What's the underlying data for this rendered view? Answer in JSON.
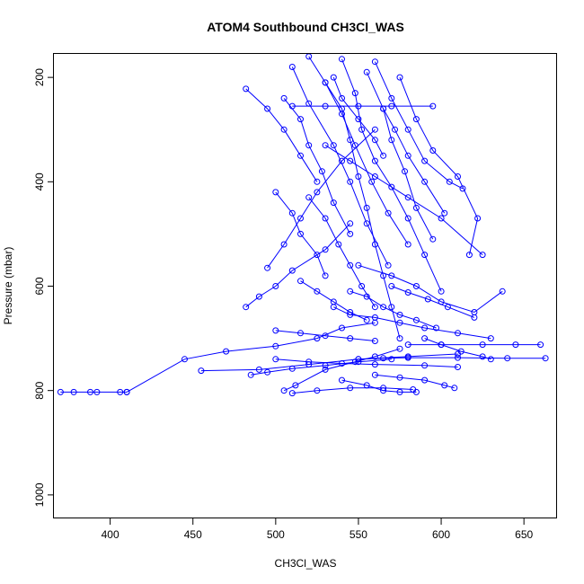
{
  "chart_data": {
    "type": "line",
    "title": "ATOM4 Southbound CH3Cl_WAS",
    "xlabel": "CH3Cl_WAS",
    "ylabel": "Pressure (mbar)",
    "xlim": [
      366,
      670
    ],
    "ylim": [
      1045,
      155
    ],
    "y_reversed": true,
    "grid": false,
    "x_ticks": [
      400,
      450,
      500,
      550,
      600,
      650
    ],
    "y_ticks": [
      200,
      400,
      600,
      800,
      1000
    ],
    "color": "#0000ff",
    "marker": "open-circle",
    "series": [
      {
        "x": [
          370,
          378,
          388,
          392,
          406,
          410
        ],
        "y": [
          803,
          803,
          803,
          803,
          803,
          803
        ]
      },
      {
        "x": [
          410,
          445,
          470,
          500,
          525,
          540,
          560
        ],
        "y": [
          803,
          740,
          725,
          715,
          700,
          680,
          670
        ]
      },
      {
        "x": [
          455,
          490,
          520,
          550,
          580,
          610
        ],
        "y": [
          762,
          760,
          750,
          740,
          735,
          730
        ]
      },
      {
        "x": [
          550,
          565,
          580,
          610,
          640,
          663
        ],
        "y": [
          740,
          738,
          737,
          737,
          738,
          738
        ]
      },
      {
        "x": [
          580,
          600,
          625,
          645,
          660
        ],
        "y": [
          712,
          712,
          712,
          712,
          712
        ]
      },
      {
        "x": [
          505,
          512,
          530,
          548,
          560,
          575
        ],
        "y": [
          800,
          790,
          760,
          745,
          735,
          720
        ]
      },
      {
        "x": [
          482,
          490,
          500,
          510,
          530,
          545
        ],
        "y": [
          640,
          620,
          600,
          570,
          530,
          480
        ]
      },
      {
        "x": [
          495,
          505,
          515,
          525,
          540,
          560
        ],
        "y": [
          565,
          520,
          470,
          420,
          360,
          300
        ]
      },
      {
        "x": [
          520,
          530,
          540,
          545,
          550,
          555,
          560,
          565,
          570,
          575
        ],
        "y": [
          160,
          210,
          260,
          320,
          390,
          450,
          520,
          580,
          640,
          700
        ]
      },
      {
        "x": [
          540,
          548,
          552,
          560,
          570,
          580,
          590,
          600
        ],
        "y": [
          165,
          230,
          300,
          360,
          410,
          470,
          540,
          610
        ]
      },
      {
        "x": [
          510,
          520,
          535,
          545,
          555,
          568
        ],
        "y": [
          180,
          250,
          330,
          400,
          480,
          560
        ]
      },
      {
        "x": [
          560,
          570,
          580,
          590,
          605,
          613
        ],
        "y": [
          170,
          240,
          300,
          360,
          400,
          413
        ]
      },
      {
        "x": [
          575,
          585,
          595,
          610,
          622,
          617
        ],
        "y": [
          200,
          280,
          340,
          390,
          470,
          540
        ]
      },
      {
        "x": [
          530,
          545,
          560,
          580,
          600,
          625
        ],
        "y": [
          330,
          360,
          390,
          430,
          470,
          540
        ]
      },
      {
        "x": [
          500,
          510,
          515,
          525,
          530
        ],
        "y": [
          420,
          460,
          500,
          540,
          580
        ]
      },
      {
        "x": [
          550,
          570,
          585,
          600,
          620,
          637
        ],
        "y": [
          560,
          580,
          600,
          630,
          650,
          610
        ]
      },
      {
        "x": [
          535,
          545,
          560,
          575,
          590,
          610,
          630
        ],
        "y": [
          640,
          655,
          660,
          670,
          680,
          690,
          700
        ]
      },
      {
        "x": [
          590,
          600,
          612,
          625,
          630
        ],
        "y": [
          700,
          712,
          725,
          735,
          740
        ]
      },
      {
        "x": [
          500,
          520,
          540,
          560,
          590,
          610
        ],
        "y": [
          740,
          745,
          748,
          750,
          752,
          755
        ]
      },
      {
        "x": [
          485,
          495,
          510,
          530,
          550,
          570
        ],
        "y": [
          770,
          765,
          758,
          752,
          745,
          740
        ]
      },
      {
        "x": [
          540,
          555,
          565,
          575,
          585
        ],
        "y": [
          780,
          790,
          800,
          803,
          803
        ]
      },
      {
        "x": [
          510,
          525,
          545,
          565,
          583
        ],
        "y": [
          805,
          800,
          795,
          795,
          798
        ]
      },
      {
        "x": [
          560,
          575,
          590,
          602,
          608
        ],
        "y": [
          770,
          775,
          780,
          790,
          795
        ]
      },
      {
        "x": [
          482,
          495,
          505,
          515,
          525
        ],
        "y": [
          222,
          260,
          300,
          350,
          400
        ]
      },
      {
        "x": [
          505,
          515,
          520,
          528,
          535,
          545
        ],
        "y": [
          240,
          280,
          330,
          380,
          440,
          500
        ]
      },
      {
        "x": [
          555,
          565,
          570,
          578,
          585,
          595
        ],
        "y": [
          190,
          260,
          320,
          380,
          450,
          510
        ]
      },
      {
        "x": [
          520,
          530,
          538,
          545,
          552,
          560
        ],
        "y": [
          430,
          470,
          520,
          560,
          600,
          640
        ]
      },
      {
        "x": [
          565,
          572,
          580,
          590,
          602
        ],
        "y": [
          260,
          300,
          350,
          400,
          460
        ]
      },
      {
        "x": [
          530,
          540,
          548,
          558,
          568,
          580
        ],
        "y": [
          210,
          270,
          330,
          400,
          460,
          520
        ]
      },
      {
        "x": [
          510,
          530,
          550,
          570,
          595
        ],
        "y": [
          255,
          255,
          255,
          255,
          255
        ]
      },
      {
        "x": [
          545,
          555,
          565,
          575,
          585,
          597
        ],
        "y": [
          610,
          620,
          640,
          655,
          665,
          680
        ]
      },
      {
        "x": [
          500,
          515,
          530,
          545,
          560
        ],
        "y": [
          685,
          690,
          695,
          700,
          705
        ]
      },
      {
        "x": [
          570,
          580,
          592,
          604,
          620
        ],
        "y": [
          600,
          612,
          625,
          640,
          660
        ]
      },
      {
        "x": [
          535,
          540,
          550,
          560,
          565
        ],
        "y": [
          200,
          240,
          280,
          320,
          350
        ]
      },
      {
        "x": [
          515,
          525,
          535,
          545,
          555
        ],
        "y": [
          590,
          610,
          630,
          650,
          665
        ]
      }
    ]
  }
}
